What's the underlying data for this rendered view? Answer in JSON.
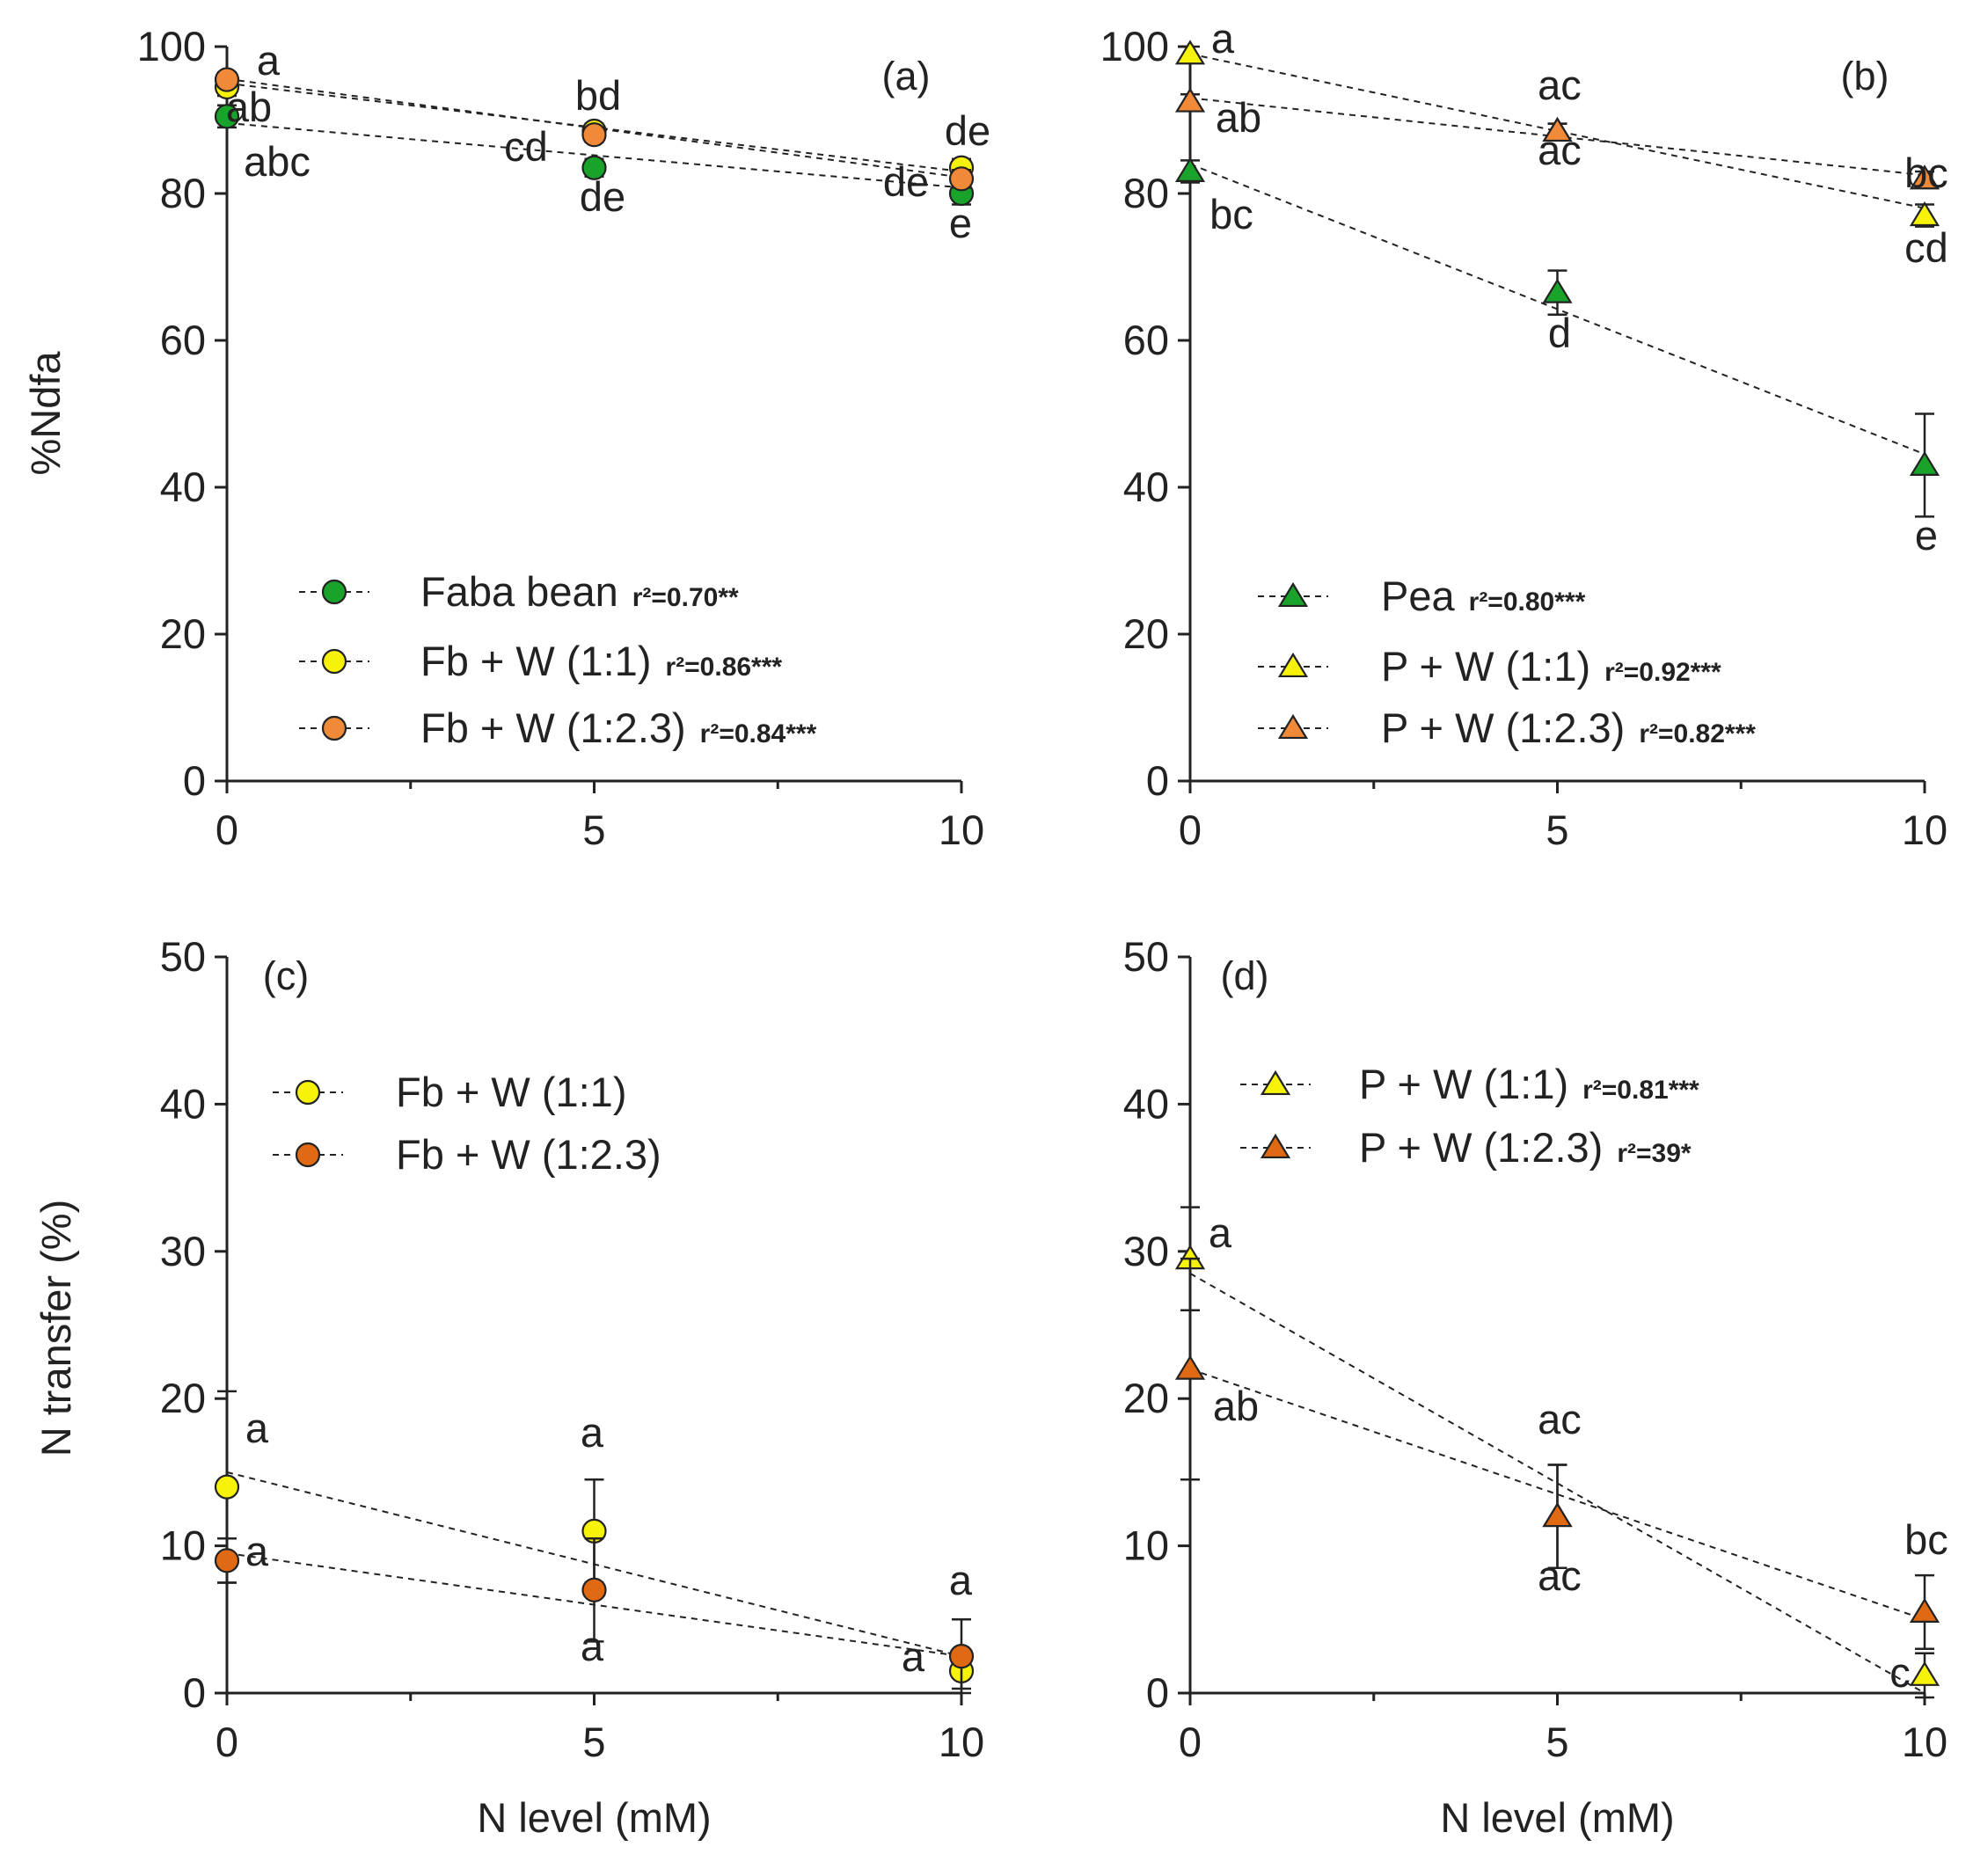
{
  "colors": {
    "green": "#1aa32a",
    "yellow": "#f7f20a",
    "orange": "#f08a38",
    "orange_dark": "#e06a14",
    "axis": "#222222"
  },
  "chart_data": [
    {
      "id": "a",
      "type": "scatter",
      "panel_label": "(a)",
      "xlabel": "",
      "ylabel": "%Ndfa",
      "xlim": [
        0,
        10
      ],
      "ylim": [
        0,
        100
      ],
      "xticks": [
        0,
        5,
        10
      ],
      "yticks": [
        0,
        20,
        40,
        60,
        80,
        100
      ],
      "legend_position": "bottom",
      "series": [
        {
          "name": "Faba bean",
          "r2": "r²=0.70**",
          "marker": "circle",
          "color_key": "green",
          "x": [
            0,
            5,
            10
          ],
          "y": [
            90.5,
            83.5,
            80
          ],
          "err": [
            1.5,
            1.2,
            1.5
          ],
          "fit": [
            89.6,
            80.8
          ],
          "letters": [
            "ab",
            "de",
            "e"
          ]
        },
        {
          "name": "Fb + W (1:1)",
          "r2": "r²=0.86***",
          "marker": "circle",
          "color_key": "yellow",
          "x": [
            0,
            5,
            10
          ],
          "y": [
            94.5,
            88.5,
            83.5
          ],
          "err": [
            1.2,
            1.0,
            1.2
          ],
          "fit": [
            95,
            83
          ],
          "letters": [
            "abc",
            "bd",
            "de"
          ]
        },
        {
          "name": "Fb + W (1:2.3)",
          "r2": "r²=0.84***",
          "marker": "circle",
          "color_key": "orange",
          "x": [
            0,
            5,
            10
          ],
          "y": [
            95.5,
            88,
            82
          ],
          "err": [
            1.0,
            1.0,
            1.2
          ],
          "fit": [
            95.6,
            82.2
          ],
          "letters": [
            "a",
            "cd",
            "de"
          ]
        }
      ]
    },
    {
      "id": "b",
      "type": "scatter",
      "panel_label": "(b)",
      "xlabel": "",
      "ylabel": "",
      "xlim": [
        0,
        10
      ],
      "ylim": [
        0,
        100
      ],
      "xticks": [
        0,
        5,
        10
      ],
      "yticks": [
        0,
        20,
        40,
        60,
        80,
        100
      ],
      "legend_position": "bottom",
      "series": [
        {
          "name": "Pea",
          "r2": "r²=0.80***",
          "marker": "triangle",
          "color_key": "green",
          "x": [
            0,
            5,
            10
          ],
          "y": [
            83,
            66.5,
            43
          ],
          "err": [
            1.5,
            3,
            7
          ],
          "fit": [
            84,
            44.5
          ],
          "letters": [
            "bc",
            "d",
            "e"
          ]
        },
        {
          "name": "P + W (1:1)",
          "r2": "r²=0.92***",
          "marker": "triangle",
          "color_key": "yellow",
          "x": [
            0,
            5,
            10
          ],
          "y": [
            99,
            88.5,
            77
          ],
          "err": [
            1,
            1,
            1.5
          ],
          "fit": [
            99,
            78
          ],
          "letters": [
            "a",
            "ac",
            "cd"
          ]
        },
        {
          "name": "P + W (1:2.3)",
          "r2": "r²=0.82***",
          "marker": "triangle",
          "color_key": "orange",
          "x": [
            0,
            5,
            10
          ],
          "y": [
            92.5,
            88.5,
            82
          ],
          "err": [
            1,
            1,
            1
          ],
          "fit": [
            93,
            82.5
          ],
          "letters": [
            "ab",
            "ac",
            "bc"
          ]
        }
      ]
    },
    {
      "id": "c",
      "type": "scatter",
      "panel_label": "(c)",
      "xlabel": "N level (mM)",
      "ylabel": "N transfer (%)",
      "xlim": [
        0,
        10
      ],
      "ylim": [
        0,
        50
      ],
      "xticks": [
        0,
        5,
        10
      ],
      "yticks": [
        0,
        10,
        20,
        30,
        40,
        50
      ],
      "legend_position": "top-left",
      "series": [
        {
          "name": "Fb + W (1:1)",
          "r2": "",
          "marker": "circle",
          "color_key": "yellow",
          "x": [
            0,
            5,
            10
          ],
          "y": [
            14,
            11,
            1.5
          ],
          "err": [
            6.5,
            3.5,
            1.2
          ],
          "fit": [
            15,
            2.5
          ],
          "letters": [
            "a",
            "a",
            "a"
          ]
        },
        {
          "name": "Fb + W (1:2.3)",
          "r2": "",
          "marker": "circle",
          "color_key": "orange_dark",
          "x": [
            0,
            5,
            10
          ],
          "y": [
            9,
            7,
            2.5
          ],
          "err": [
            1.5,
            3.5,
            2.5
          ],
          "fit": [
            9.5,
            2.5
          ],
          "letters": [
            "a",
            "a",
            "a"
          ]
        }
      ]
    },
    {
      "id": "d",
      "type": "scatter",
      "panel_label": "(d)",
      "xlabel": "N level (mM)",
      "ylabel": "",
      "xlim": [
        0,
        10
      ],
      "ylim": [
        0,
        50
      ],
      "xticks": [
        0,
        5,
        10
      ],
      "yticks": [
        0,
        10,
        20,
        30,
        40,
        50
      ],
      "legend_position": "top-left",
      "series": [
        {
          "name": "P + W (1:1)",
          "r2": "r²=0.81***",
          "marker": "triangle",
          "color_key": "yellow",
          "x": [
            0,
            5,
            10
          ],
          "y": [
            29.5,
            12,
            1.2
          ],
          "err": [
            3.5,
            3.5,
            1.5
          ],
          "fit": [
            28.5,
            0
          ],
          "letters": [
            "a",
            "ac",
            "c"
          ]
        },
        {
          "name": "P + W (1:2.3)",
          "r2": "r²=39*",
          "marker": "triangle",
          "color_key": "orange_dark",
          "x": [
            0,
            5,
            10
          ],
          "y": [
            22,
            12,
            5.5
          ],
          "err": [
            7.5,
            3.5,
            2.5
          ],
          "fit": [
            22,
            5
          ],
          "letters": [
            "ab",
            "ac",
            "bc"
          ]
        }
      ]
    }
  ]
}
